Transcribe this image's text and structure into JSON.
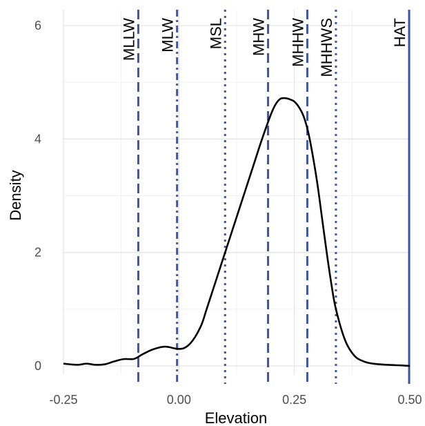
{
  "chart_data": {
    "type": "line",
    "title": "",
    "xlabel": "Elevation",
    "ylabel": "Density",
    "xlim": [
      -0.25,
      0.5
    ],
    "ylim": [
      0,
      6
    ],
    "grid": true,
    "x_ticks": [
      {
        "value": -0.25,
        "label": "-0.25"
      },
      {
        "value": 0.0,
        "label": "0.00"
      },
      {
        "value": 0.25,
        "label": "0.25"
      },
      {
        "value": 0.5,
        "label": "0.50"
      }
    ],
    "y_ticks": [
      {
        "value": 0,
        "label": "0"
      },
      {
        "value": 2,
        "label": "2"
      },
      {
        "value": 4,
        "label": "4"
      },
      {
        "value": 6,
        "label": "6"
      }
    ],
    "series": [
      {
        "color": "#000000",
        "x": [
          -0.25,
          -0.22,
          -0.2,
          -0.18,
          -0.16,
          -0.14,
          -0.12,
          -0.1,
          -0.09,
          -0.08,
          -0.06,
          -0.04,
          -0.03,
          -0.02,
          -0.01,
          0.0,
          0.01,
          0.02,
          0.03,
          0.04,
          0.05,
          0.06,
          0.08,
          0.1,
          0.12,
          0.14,
          0.16,
          0.18,
          0.2,
          0.21,
          0.22,
          0.23,
          0.24,
          0.25,
          0.26,
          0.27,
          0.28,
          0.29,
          0.3,
          0.31,
          0.32,
          0.33,
          0.34,
          0.36,
          0.38,
          0.4,
          0.42,
          0.45,
          0.48,
          0.5
        ],
        "y": [
          0.04,
          0.02,
          0.04,
          0.02,
          0.03,
          0.08,
          0.12,
          0.12,
          0.15,
          0.2,
          0.28,
          0.33,
          0.34,
          0.33,
          0.31,
          0.3,
          0.31,
          0.36,
          0.45,
          0.58,
          0.75,
          1.0,
          1.5,
          2.0,
          2.5,
          3.0,
          3.5,
          4.0,
          4.45,
          4.62,
          4.71,
          4.72,
          4.7,
          4.66,
          4.56,
          4.4,
          4.12,
          3.7,
          3.2,
          2.6,
          2.0,
          1.45,
          1.0,
          0.45,
          0.18,
          0.08,
          0.04,
          0.02,
          0.01,
          0.0
        ]
      }
    ],
    "reference_lines": [
      {
        "label": "MLLW",
        "x": -0.088,
        "style": "dashed",
        "color": "#3a56a6"
      },
      {
        "label": "MLW",
        "x": -0.004,
        "style": "dashdot",
        "color": "#3a56a6"
      },
      {
        "label": "MSL",
        "x": 0.1,
        "style": "dotted",
        "color": "#3a56a6"
      },
      {
        "label": "MHW",
        "x": 0.193,
        "style": "dashed",
        "color": "#3a56a6"
      },
      {
        "label": "MHHW",
        "x": 0.278,
        "style": "dashed",
        "color": "#3a56a6"
      },
      {
        "label": "MHHWS",
        "x": 0.34,
        "style": "dotted",
        "color": "#3a56a6"
      },
      {
        "label": "HAT",
        "x": 0.5,
        "style": "solid",
        "color": "#3a56a6"
      }
    ]
  }
}
